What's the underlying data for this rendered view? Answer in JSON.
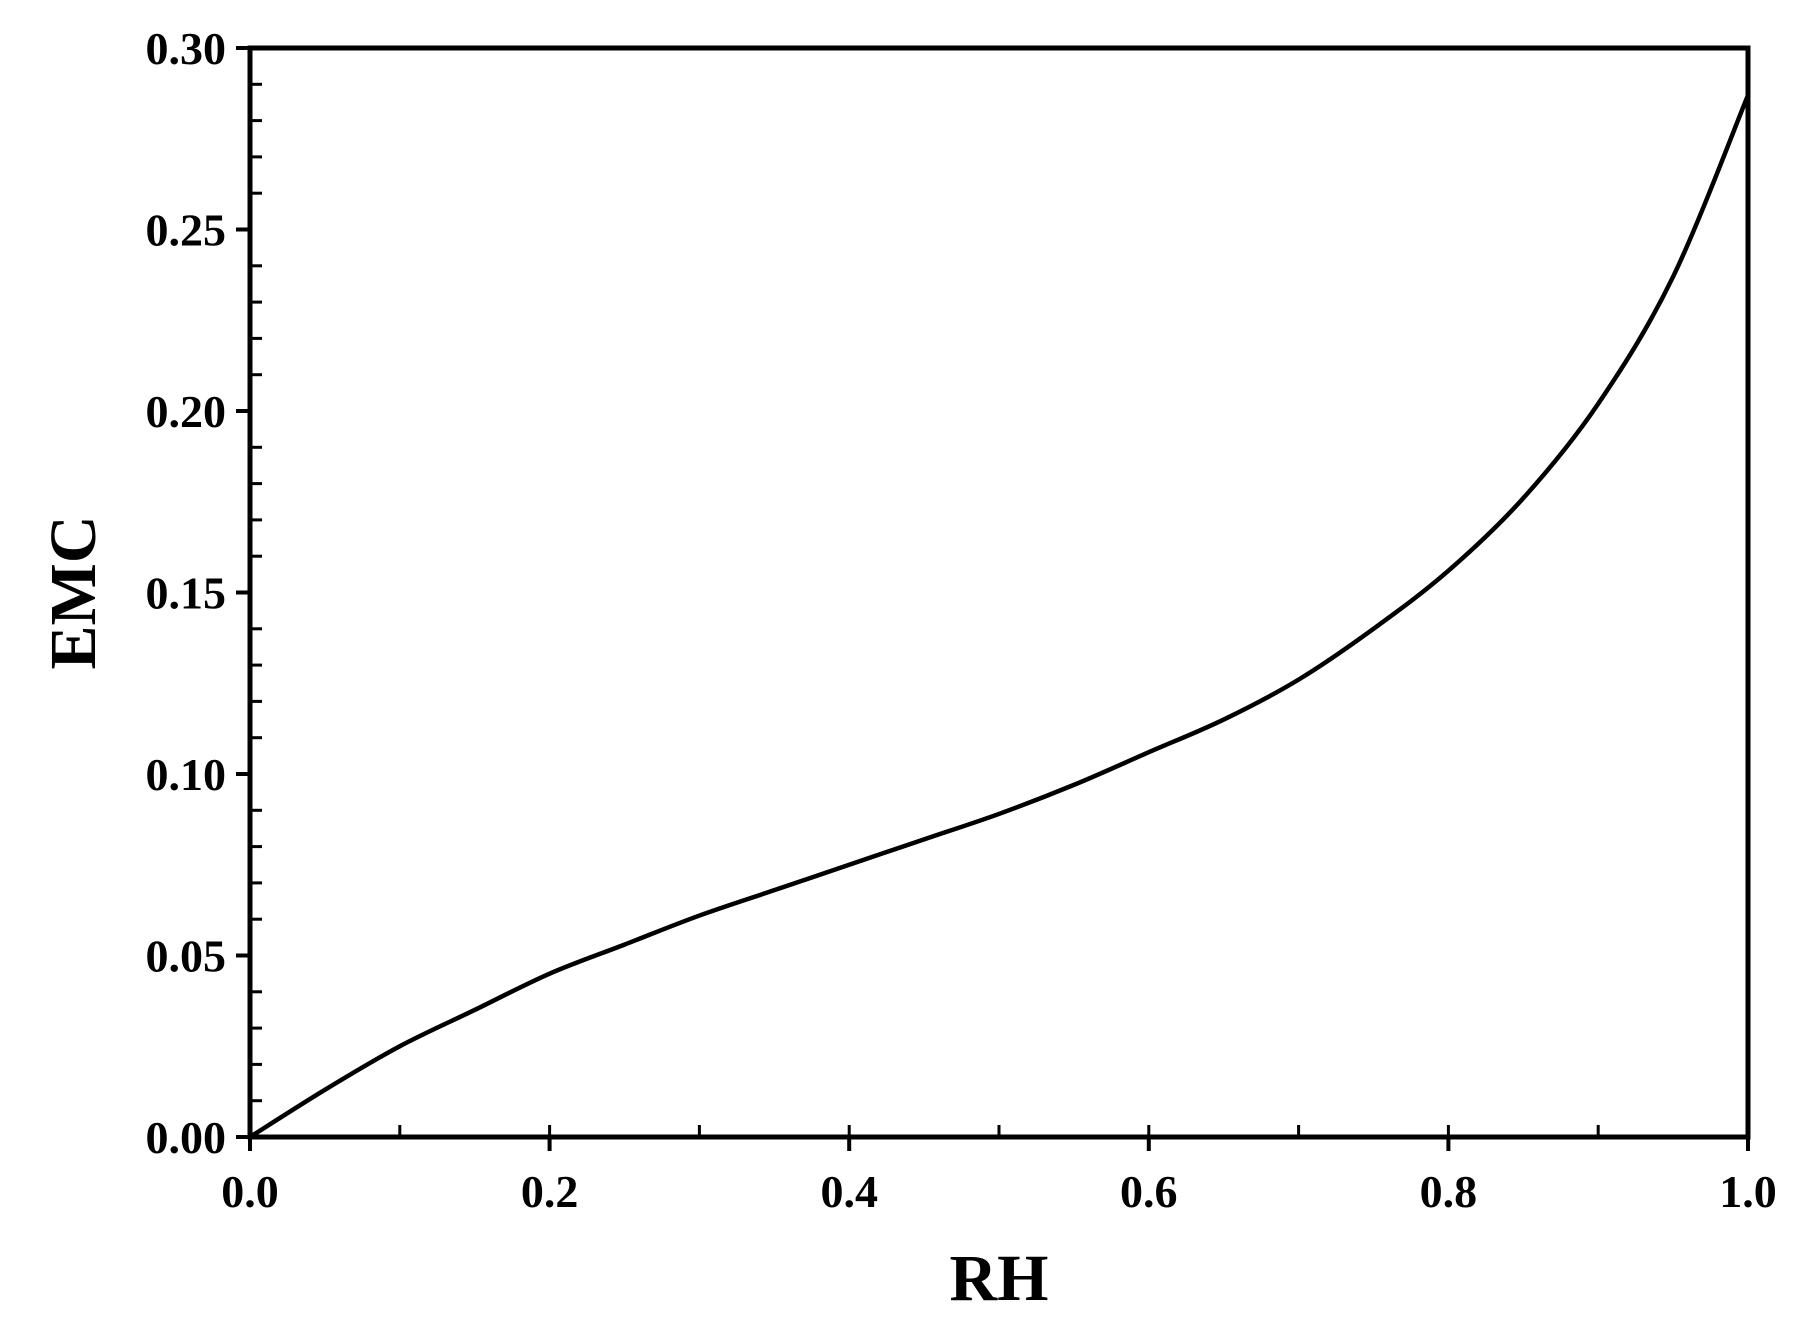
{
  "chart_data": {
    "type": "line",
    "title": "",
    "xlabel": "RH",
    "ylabel": "EMC",
    "xlim": [
      0.0,
      1.0
    ],
    "ylim": [
      0.0,
      0.3
    ],
    "x_ticks": [
      "0.0",
      "0.2",
      "0.4",
      "0.6",
      "0.8",
      "1.0"
    ],
    "y_ticks": [
      "0.00",
      "0.05",
      "0.10",
      "0.15",
      "0.20",
      "0.25",
      "0.30"
    ],
    "grid": false,
    "series": [
      {
        "color": "#000000",
        "x": [
          0.0,
          0.05,
          0.1,
          0.15,
          0.2,
          0.25,
          0.3,
          0.35,
          0.4,
          0.45,
          0.5,
          0.55,
          0.6,
          0.65,
          0.7,
          0.75,
          0.8,
          0.85,
          0.9,
          0.95,
          1.0
        ],
        "y": [
          0.0,
          0.013,
          0.025,
          0.035,
          0.045,
          0.053,
          0.061,
          0.068,
          0.075,
          0.082,
          0.089,
          0.097,
          0.106,
          0.115,
          0.126,
          0.14,
          0.156,
          0.176,
          0.202,
          0.237,
          0.287
        ]
      }
    ]
  }
}
